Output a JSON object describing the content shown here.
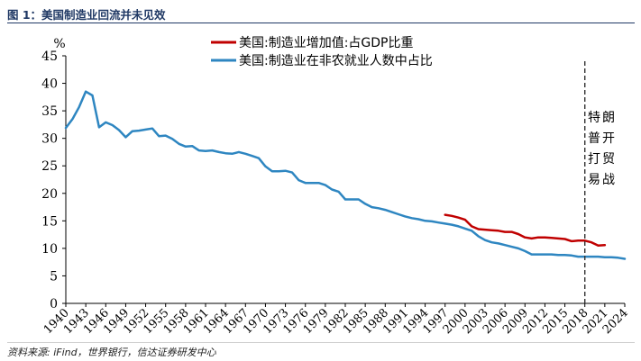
{
  "figure": {
    "title": "图 1：美国制造业回流并未见效",
    "source": "资料来源: iFind，世界银行，信达证券研发中心"
  },
  "chart_data": {
    "type": "line",
    "ylabel": "%",
    "xlabel": "",
    "ylim": [
      0,
      45
    ],
    "yticks": [
      0,
      5,
      10,
      15,
      20,
      25,
      30,
      35,
      40,
      45
    ],
    "xlim": [
      1940,
      2024
    ],
    "xticks": [
      1940,
      1943,
      1946,
      1949,
      1952,
      1955,
      1958,
      1961,
      1964,
      1967,
      1970,
      1973,
      1976,
      1979,
      1982,
      1985,
      1988,
      1991,
      1994,
      1997,
      2000,
      2003,
      2006,
      2009,
      2012,
      2015,
      2018,
      2021,
      2024
    ],
    "grid": false,
    "legend_position": "top-center",
    "annotation": {
      "x": 2018,
      "text": "特朗普开打贸易战",
      "style": "dashed-vertical-line"
    },
    "series": [
      {
        "name": "美国:制造业增加值:占GDP比重",
        "color": "#c00000",
        "x": [
          1997,
          1998,
          1999,
          2000,
          2001,
          2002,
          2003,
          2004,
          2005,
          2006,
          2007,
          2008,
          2009,
          2010,
          2011,
          2012,
          2013,
          2014,
          2015,
          2016,
          2017,
          2018,
          2019,
          2020,
          2021
        ],
        "y": [
          16.1,
          15.9,
          15.6,
          15.2,
          14.0,
          13.5,
          13.4,
          13.3,
          13.2,
          13.0,
          13.0,
          12.6,
          12.0,
          11.8,
          12.0,
          12.0,
          11.9,
          11.8,
          11.7,
          11.3,
          11.4,
          11.4,
          11.1,
          10.5,
          10.6
        ]
      },
      {
        "name": "美国:制造业在非农就业人数中占比",
        "color": "#2e86c1",
        "x": [
          1940,
          1941,
          1942,
          1943,
          1944,
          1945,
          1946,
          1947,
          1948,
          1949,
          1950,
          1951,
          1952,
          1953,
          1954,
          1955,
          1956,
          1957,
          1958,
          1959,
          1960,
          1961,
          1962,
          1963,
          1964,
          1965,
          1966,
          1967,
          1968,
          1969,
          1970,
          1971,
          1972,
          1973,
          1974,
          1975,
          1976,
          1977,
          1978,
          1979,
          1980,
          1981,
          1982,
          1983,
          1984,
          1985,
          1986,
          1987,
          1988,
          1989,
          1990,
          1991,
          1992,
          1993,
          1994,
          1995,
          1996,
          1997,
          1998,
          1999,
          2000,
          2001,
          2002,
          2003,
          2004,
          2005,
          2006,
          2007,
          2008,
          2009,
          2010,
          2011,
          2012,
          2013,
          2014,
          2015,
          2016,
          2017,
          2018,
          2019,
          2020,
          2021,
          2022,
          2023,
          2024
        ],
        "y": [
          31.9,
          33.5,
          35.7,
          38.5,
          37.8,
          32.0,
          32.9,
          32.4,
          31.5,
          30.2,
          31.3,
          31.4,
          31.6,
          31.8,
          30.4,
          30.5,
          29.9,
          29.0,
          28.5,
          28.6,
          27.8,
          27.7,
          27.8,
          27.5,
          27.3,
          27.2,
          27.5,
          27.2,
          26.8,
          26.4,
          24.9,
          24.0,
          24.0,
          24.1,
          23.8,
          22.4,
          21.9,
          21.9,
          21.9,
          21.5,
          20.7,
          20.3,
          18.9,
          18.9,
          18.9,
          18.1,
          17.5,
          17.3,
          17.0,
          16.6,
          16.2,
          15.8,
          15.5,
          15.3,
          15.0,
          14.9,
          14.7,
          14.5,
          14.3,
          14.0,
          13.6,
          13.2,
          12.2,
          11.5,
          11.1,
          10.9,
          10.6,
          10.3,
          10.0,
          9.5,
          8.9,
          8.9,
          8.9,
          8.9,
          8.8,
          8.8,
          8.7,
          8.5,
          8.5,
          8.5,
          8.5,
          8.4,
          8.4,
          8.3,
          8.1
        ]
      }
    ]
  }
}
